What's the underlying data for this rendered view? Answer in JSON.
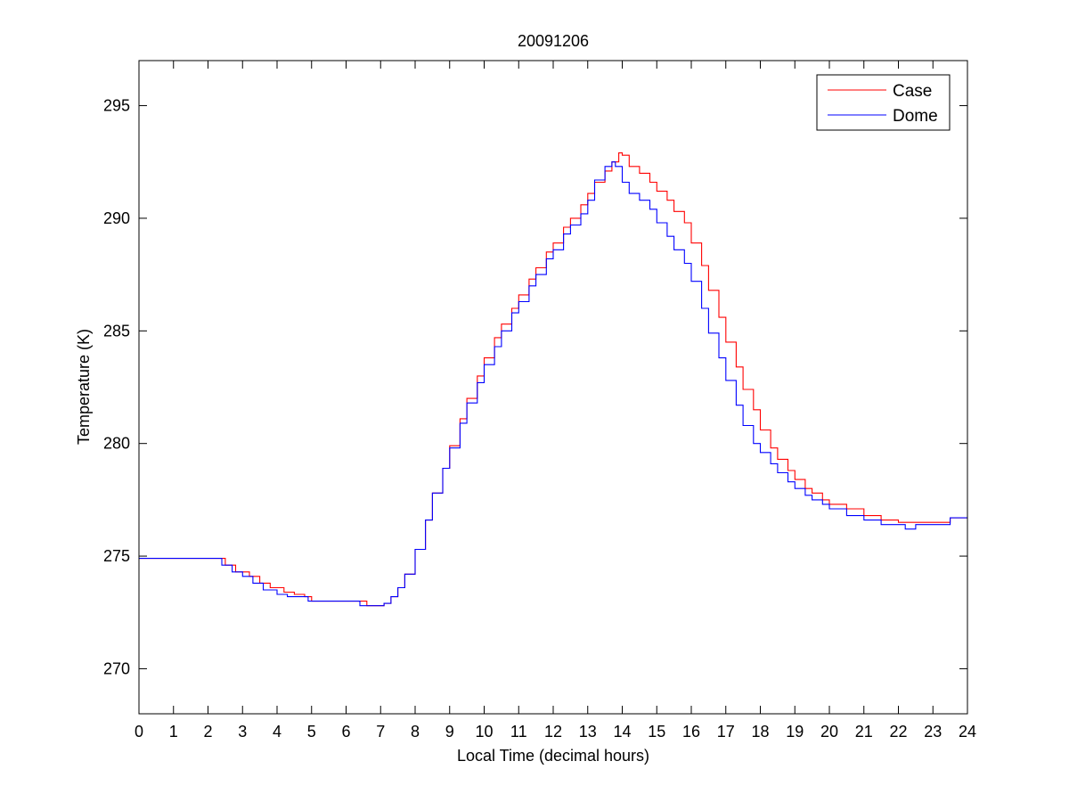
{
  "chart_data": {
    "type": "line",
    "title": "20091206",
    "xlabel": "Local Time (decimal hours)",
    "ylabel": "Temperature (K)",
    "xlim": [
      0,
      24
    ],
    "ylim": [
      268,
      297
    ],
    "xticks": [
      0,
      1,
      2,
      3,
      4,
      5,
      6,
      7,
      8,
      9,
      10,
      11,
      12,
      13,
      14,
      15,
      16,
      17,
      18,
      19,
      20,
      21,
      22,
      23,
      24
    ],
    "yticks": [
      270,
      275,
      280,
      285,
      290,
      295
    ],
    "grid": false,
    "legend_position": "top-right",
    "series": [
      {
        "name": "Case",
        "color": "#ff0000",
        "x": [
          0,
          2.2,
          2.5,
          2.8,
          3.2,
          3.5,
          3.8,
          4.2,
          4.5,
          4.8,
          5.0,
          6.5,
          6.6,
          7.0,
          7.1,
          7.3,
          7.5,
          7.7,
          8.0,
          8.3,
          8.5,
          8.8,
          9.0,
          9.3,
          9.5,
          9.8,
          10.0,
          10.3,
          10.5,
          10.8,
          11.0,
          11.3,
          11.5,
          11.8,
          12.0,
          12.3,
          12.5,
          12.8,
          13.0,
          13.2,
          13.5,
          13.7,
          13.9,
          14.0,
          14.2,
          14.5,
          14.8,
          15.0,
          15.3,
          15.5,
          15.8,
          16.0,
          16.3,
          16.5,
          16.8,
          17.0,
          17.3,
          17.5,
          17.8,
          18.0,
          18.3,
          18.5,
          18.8,
          19.0,
          19.3,
          19.5,
          19.8,
          20.0,
          20.5,
          21.0,
          21.5,
          22.0,
          22.5,
          23.0,
          23.4,
          23.5,
          24.0
        ],
        "y": [
          274.9,
          274.9,
          274.6,
          274.3,
          274.1,
          273.8,
          273.6,
          273.4,
          273.3,
          273.2,
          273.0,
          273.0,
          272.8,
          272.8,
          272.9,
          273.2,
          273.6,
          274.2,
          275.3,
          276.6,
          277.8,
          278.9,
          279.9,
          281.1,
          282.0,
          283.0,
          283.8,
          284.7,
          285.3,
          286.0,
          286.6,
          287.3,
          287.8,
          288.5,
          288.9,
          289.6,
          290.0,
          290.6,
          291.1,
          291.6,
          292.1,
          292.5,
          292.9,
          292.8,
          292.3,
          292.0,
          291.6,
          291.2,
          290.8,
          290.3,
          289.8,
          288.9,
          287.9,
          286.8,
          285.6,
          284.5,
          283.4,
          282.4,
          281.5,
          280.6,
          279.8,
          279.3,
          278.8,
          278.4,
          278.0,
          277.8,
          277.5,
          277.3,
          277.1,
          276.8,
          276.6,
          276.5,
          276.5,
          276.5,
          276.5,
          276.7,
          276.7
        ]
      },
      {
        "name": "Dome",
        "color": "#0000ff",
        "x": [
          0,
          2.2,
          2.4,
          2.7,
          3.0,
          3.3,
          3.6,
          4.0,
          4.3,
          4.6,
          4.9,
          6.3,
          6.4,
          7.0,
          7.1,
          7.3,
          7.5,
          7.7,
          8.0,
          8.3,
          8.5,
          8.8,
          9.0,
          9.3,
          9.5,
          9.8,
          10.0,
          10.3,
          10.5,
          10.8,
          11.0,
          11.3,
          11.5,
          11.8,
          12.0,
          12.3,
          12.5,
          12.8,
          13.0,
          13.2,
          13.5,
          13.7,
          13.8,
          14.0,
          14.2,
          14.5,
          14.8,
          15.0,
          15.3,
          15.5,
          15.8,
          16.0,
          16.3,
          16.5,
          16.8,
          17.0,
          17.3,
          17.5,
          17.8,
          18.0,
          18.3,
          18.5,
          18.8,
          19.0,
          19.3,
          19.5,
          19.8,
          20.0,
          20.5,
          21.0,
          21.5,
          22.0,
          22.2,
          22.5,
          23.0,
          23.4,
          23.5,
          24.0
        ],
        "y": [
          274.9,
          274.9,
          274.6,
          274.3,
          274.1,
          273.8,
          273.5,
          273.3,
          273.2,
          273.2,
          273.0,
          273.0,
          272.8,
          272.8,
          272.9,
          273.2,
          273.6,
          274.2,
          275.3,
          276.6,
          277.8,
          278.9,
          279.8,
          280.9,
          281.8,
          282.7,
          283.5,
          284.3,
          285.0,
          285.8,
          286.3,
          287.0,
          287.5,
          288.2,
          288.6,
          289.3,
          289.7,
          290.2,
          290.8,
          291.7,
          292.3,
          292.5,
          292.3,
          291.6,
          291.1,
          290.8,
          290.4,
          289.8,
          289.2,
          288.6,
          288.0,
          287.2,
          286.0,
          284.9,
          283.8,
          282.8,
          281.7,
          280.8,
          280.0,
          279.6,
          279.1,
          278.7,
          278.3,
          278.0,
          277.7,
          277.5,
          277.3,
          277.1,
          276.8,
          276.6,
          276.4,
          276.4,
          276.2,
          276.4,
          276.4,
          276.4,
          276.7,
          276.7
        ]
      }
    ]
  }
}
